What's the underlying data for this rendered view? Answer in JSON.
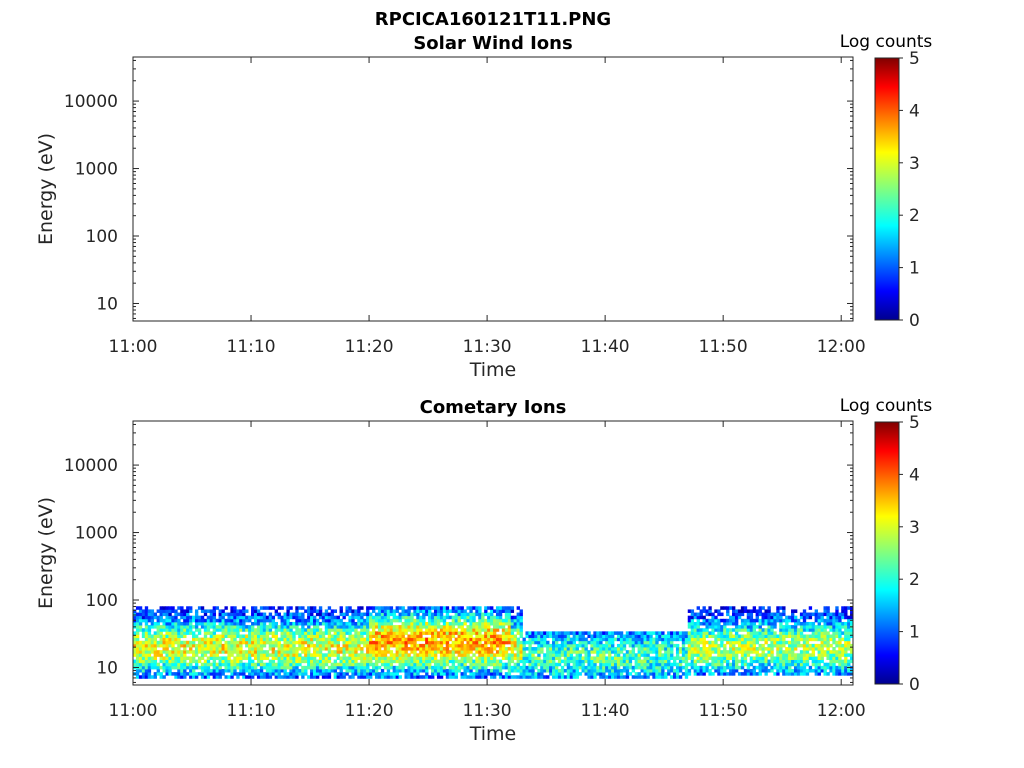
{
  "chart_data": [
    {
      "type": "heatmap",
      "title": "RPCICA160121T11.PNG",
      "subtitle": "Solar Wind Ions",
      "xlabel": "Time",
      "ylabel": "Energy (eV)",
      "x_ticks": [
        "11:00",
        "11:10",
        "11:20",
        "11:30",
        "11:40",
        "11:50",
        "12:00"
      ],
      "xlim": [
        "11:00",
        "12:01"
      ],
      "y_scale": "log",
      "y_ticks": [
        10,
        100,
        1000,
        10000
      ],
      "y_tick_labels": [
        "10",
        "100",
        "1000",
        "10000"
      ],
      "ylim": [
        5.5,
        45000
      ],
      "grid": false,
      "colorbar": {
        "label": "Log counts",
        "ticks": [
          "0",
          "1",
          "2",
          "3",
          "4",
          "5"
        ],
        "range": [
          0,
          5
        ],
        "colormap": "jet"
      },
      "data": []
    },
    {
      "type": "heatmap",
      "title": "Cometary Ions",
      "xlabel": "Time",
      "ylabel": "Energy (eV)",
      "x_ticks": [
        "11:00",
        "11:10",
        "11:20",
        "11:30",
        "11:40",
        "11:50",
        "12:00"
      ],
      "xlim": [
        "11:00",
        "12:01"
      ],
      "y_scale": "log",
      "y_ticks": [
        10,
        100,
        1000,
        10000
      ],
      "y_tick_labels": [
        "10",
        "100",
        "1000",
        "10000"
      ],
      "ylim": [
        5.5,
        45000
      ],
      "grid": false,
      "colorbar": {
        "label": "Log counts",
        "ticks": [
          "0",
          "1",
          "2",
          "3",
          "4",
          "5"
        ],
        "range": [
          0,
          5
        ],
        "colormap": "jet"
      },
      "data": [
        {
          "time_range": [
            "11:00",
            "11:33"
          ],
          "energy_range_eV": [
            7,
            80
          ],
          "peak_energy_eV": 20,
          "peak_log_counts": 3.0
        },
        {
          "time_range": [
            "11:20",
            "11:32"
          ],
          "energy_range_eV": [
            10,
            80
          ],
          "peak_energy_eV": 25,
          "peak_log_counts": 3.5
        },
        {
          "time_range": [
            "11:33",
            "11:47"
          ],
          "energy_range_eV": [
            7,
            35
          ],
          "peak_energy_eV": 15,
          "peak_log_counts": 2.2
        },
        {
          "time_range": [
            "11:47",
            "12:01"
          ],
          "energy_range_eV": [
            8,
            80
          ],
          "peak_energy_eV": 20,
          "peak_log_counts": 2.7
        }
      ]
    }
  ]
}
